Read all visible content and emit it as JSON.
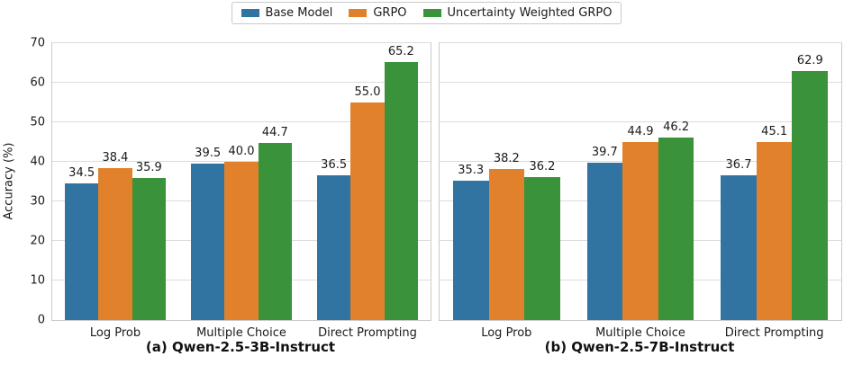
{
  "figure": {
    "ylabel": "Accuracy (%)"
  },
  "legend": {
    "position": "top-center",
    "entries": [
      {
        "label": "Base Model",
        "color": "#3274a1"
      },
      {
        "label": "GRPO",
        "color": "#e1812c"
      },
      {
        "label": "Uncertainty Weighted GRPO",
        "color": "#3a923a"
      }
    ]
  },
  "chart_data": [
    {
      "type": "bar",
      "title": "(a) Qwen-2.5-3B-Instruct",
      "categories": [
        "Log Prob",
        "Multiple Choice",
        "Direct Prompting"
      ],
      "series": [
        {
          "name": "Base Model",
          "color": "#3274a1",
          "values": [
            34.5,
            39.5,
            36.5
          ]
        },
        {
          "name": "GRPO",
          "color": "#e1812c",
          "values": [
            38.4,
            40.0,
            55.0
          ]
        },
        {
          "name": "Uncertainty Weighted GRPO",
          "color": "#3a923a",
          "values": [
            35.9,
            44.7,
            65.2
          ]
        }
      ],
      "xlabel": "",
      "ylabel": "Accuracy (%)",
      "ylim": [
        0,
        70
      ],
      "yticks": [
        0,
        10,
        20,
        30,
        40,
        50,
        60,
        70
      ],
      "grid": true,
      "bar_value_labels": true
    },
    {
      "type": "bar",
      "title": "(b) Qwen-2.5-7B-Instruct",
      "categories": [
        "Log Prob",
        "Multiple Choice",
        "Direct Prompting"
      ],
      "series": [
        {
          "name": "Base Model",
          "color": "#3274a1",
          "values": [
            35.3,
            39.7,
            36.7
          ]
        },
        {
          "name": "GRPO",
          "color": "#e1812c",
          "values": [
            38.2,
            44.9,
            45.1
          ]
        },
        {
          "name": "Uncertainty Weighted GRPO",
          "color": "#3a923a",
          "values": [
            36.2,
            46.2,
            62.9
          ]
        }
      ],
      "xlabel": "",
      "ylabel": "",
      "ylim": [
        0,
        70
      ],
      "yticks": [
        0,
        10,
        20,
        30,
        40,
        50,
        60,
        70
      ],
      "grid": true,
      "bar_value_labels": true
    }
  ]
}
